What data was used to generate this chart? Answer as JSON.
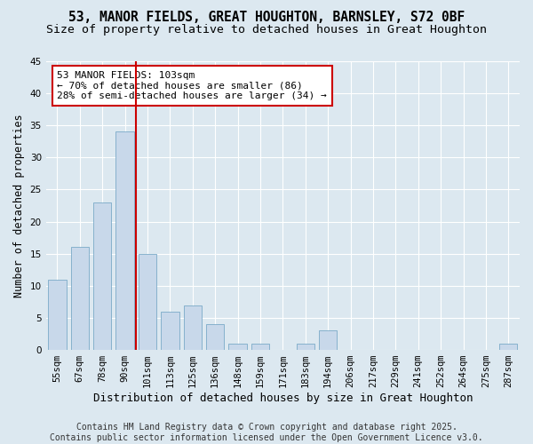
{
  "title": "53, MANOR FIELDS, GREAT HOUGHTON, BARNSLEY, S72 0BF",
  "subtitle": "Size of property relative to detached houses in Great Houghton",
  "xlabel": "Distribution of detached houses by size in Great Houghton",
  "ylabel": "Number of detached properties",
  "bar_values": [
    11,
    16,
    23,
    34,
    15,
    6,
    7,
    4,
    1,
    1,
    0,
    1,
    3,
    0,
    0,
    0,
    0,
    0,
    0,
    0,
    1
  ],
  "categories": [
    "55sqm",
    "67sqm",
    "78sqm",
    "90sqm",
    "101sqm",
    "113sqm",
    "125sqm",
    "136sqm",
    "148sqm",
    "159sqm",
    "171sqm",
    "183sqm",
    "194sqm",
    "206sqm",
    "217sqm",
    "229sqm",
    "241sqm",
    "252sqm",
    "264sqm",
    "275sqm",
    "287sqm"
  ],
  "bar_color": "#c8d8ea",
  "bar_edge_color": "#7aaac8",
  "vline_color": "#cc0000",
  "vline_x": 3.5,
  "annotation_text": "53 MANOR FIELDS: 103sqm\n← 70% of detached houses are smaller (86)\n28% of semi-detached houses are larger (34) →",
  "annotation_box_edgecolor": "#cc0000",
  "ylim": [
    0,
    45
  ],
  "yticks": [
    0,
    5,
    10,
    15,
    20,
    25,
    30,
    35,
    40,
    45
  ],
  "background_color": "#dce8f0",
  "plot_bg_color": "#dce8f0",
  "footer_text": "Contains HM Land Registry data © Crown copyright and database right 2025.\nContains public sector information licensed under the Open Government Licence v3.0.",
  "title_fontsize": 10.5,
  "subtitle_fontsize": 9.5,
  "xlabel_fontsize": 9,
  "ylabel_fontsize": 8.5,
  "tick_fontsize": 7.5,
  "annotation_fontsize": 8,
  "footer_fontsize": 7
}
